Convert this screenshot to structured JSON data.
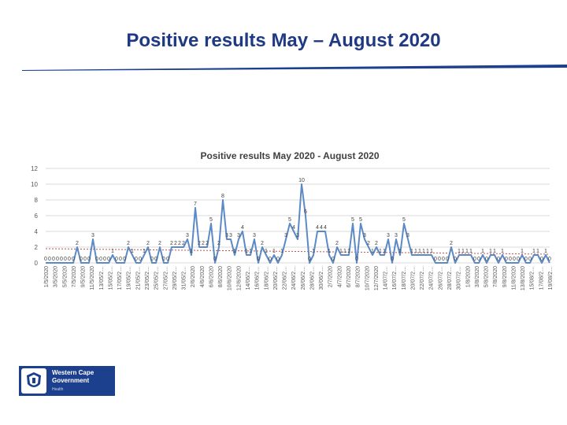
{
  "slide": {
    "title": "Positive results May – August 2020",
    "logo": {
      "line1": "Western Cape",
      "line2": "Government",
      "line3": "Health"
    }
  },
  "colors": {
    "title": "#1f3a82",
    "rule": "#1c3f8e",
    "series": "#5b8ac6",
    "trend": "#c0504d",
    "grid": "#d9d9d9",
    "axis_text": "#595959"
  },
  "chart_data": {
    "type": "line",
    "title": "Positive results May 2020 - August 2020",
    "xlabel": "",
    "ylabel": "",
    "ylim": [
      0,
      12
    ],
    "y_ticks": [
      0,
      2,
      4,
      6,
      8,
      10,
      12
    ],
    "grid": true,
    "legend": "none",
    "x_tick_labels": [
      "1/5/2020",
      "3/5/2020",
      "5/5/2020",
      "7/5/2020",
      "9/5/2020",
      "11/5/2020",
      "13/05/2…",
      "15/05/2…",
      "17/05/2…",
      "19/05/2…",
      "21/05/2…",
      "23/05/2…",
      "25/05/2…",
      "27/05/2…",
      "29/05/2…",
      "31/05/2…",
      "2/6/2020",
      "4/6/2020",
      "6/6/2020",
      "8/6/2020",
      "10/6/2020",
      "12/6/2020",
      "14/06/2…",
      "16/06/2…",
      "18/06/2…",
      "20/06/2…",
      "22/06/2…",
      "24/06/2…",
      "26/06/2…",
      "28/06/2…",
      "30/06/2…",
      "2/7/2020",
      "4/7/2020",
      "6/7/2020",
      "8/7/2020",
      "10/7/2020",
      "12/7/2020",
      "14/07/2…",
      "16/07/2…",
      "18/07/2…",
      "20/07/2…",
      "22/07/2…",
      "24/07/2…",
      "26/07/2…",
      "28/07/2…",
      "30/07/2…",
      "1/8/2020",
      "3/8/2020",
      "5/8/2020",
      "7/8/2020",
      "9/8/2020",
      "11/8/2020",
      "13/8/2020",
      "15/08/2…",
      "17/08/2…",
      "19/08/2…"
    ],
    "series": [
      {
        "values": [
          0,
          0,
          0,
          0,
          0,
          0,
          0,
          0,
          2,
          0,
          0,
          0,
          3,
          0,
          0,
          0,
          0,
          1,
          0,
          0,
          0,
          2,
          1,
          0,
          0,
          1,
          2,
          0,
          0,
          2,
          0,
          0,
          2,
          2,
          2,
          2,
          3,
          1,
          7,
          2,
          2,
          2,
          5,
          0,
          2,
          8,
          3,
          3,
          1,
          3,
          4,
          1,
          1,
          3,
          0,
          2,
          1,
          0,
          1,
          0,
          1,
          3,
          5,
          4,
          3,
          10,
          6,
          0,
          1,
          4,
          4,
          4,
          1,
          0,
          2,
          1,
          1,
          1,
          5,
          0,
          5,
          3,
          2,
          1,
          2,
          1,
          1,
          3,
          0,
          3,
          1,
          5,
          3,
          1,
          1,
          1,
          1,
          1,
          1,
          0,
          0,
          0,
          0,
          2,
          0,
          1,
          1,
          1,
          1,
          0,
          0,
          1,
          0,
          1,
          1,
          0,
          1,
          0,
          0,
          0,
          0,
          1,
          0,
          0,
          1,
          1,
          0,
          1,
          0
        ],
        "data_labels": [
          "0",
          "0",
          "0",
          "0",
          "0",
          "0",
          "0",
          "0",
          "2",
          "0",
          "0",
          "0",
          "3",
          "0",
          "0",
          "0",
          "0",
          "1",
          "0",
          "0",
          "0",
          "2",
          "1",
          "0",
          "0",
          "1",
          "2",
          "0",
          "0",
          "2",
          "0",
          "0",
          "2",
          "2",
          "2",
          "2",
          "3",
          "1",
          "7",
          "2",
          "2",
          "2",
          "5",
          "0",
          "2",
          "8",
          "3",
          "3",
          "1",
          "3",
          "4",
          "1",
          "1",
          "3",
          "0",
          "2",
          "1",
          "0",
          "1",
          "0",
          "1",
          "3",
          "5",
          "4",
          "3",
          "10",
          "6",
          "0",
          "1",
          "4",
          "4",
          "4",
          "1",
          "0",
          "2",
          "1",
          "1",
          "1",
          "5",
          "0",
          "5",
          "3",
          "2",
          "1",
          "2",
          "1",
          "1",
          "3",
          "0",
          "3",
          "1",
          "5",
          "3",
          "1",
          "1",
          "1",
          "1",
          "1",
          "1",
          "0",
          "0",
          "0",
          "0",
          "2",
          "0",
          "1",
          "1",
          "1",
          "1",
          "0",
          "0",
          "1",
          "0",
          "1",
          "1",
          "0",
          "1",
          "0",
          "0",
          "0",
          "0",
          "1",
          "0",
          "0",
          "1",
          "1",
          "0",
          "1",
          "0"
        ]
      }
    ],
    "trendline": {
      "type": "linear",
      "start": 1.8,
      "end": 1.1
    }
  }
}
